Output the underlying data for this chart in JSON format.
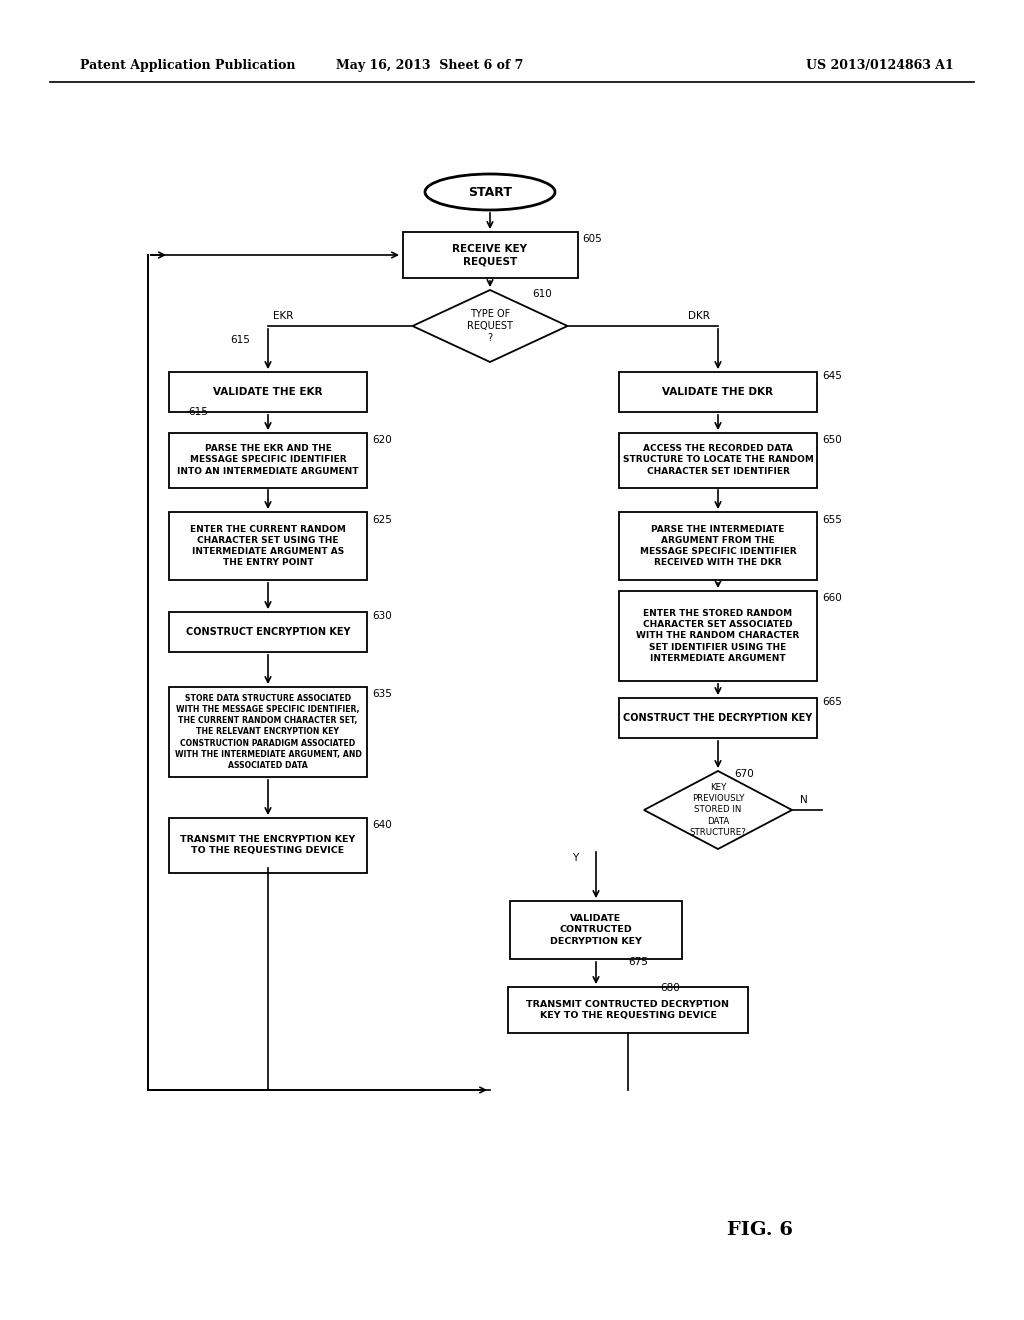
{
  "header_left": "Patent Application Publication",
  "header_mid": "May 16, 2013  Sheet 6 of 7",
  "header_right": "US 2013/0124863 A1",
  "fig_label": "FIG. 6",
  "bg_color": "#ffffff"
}
